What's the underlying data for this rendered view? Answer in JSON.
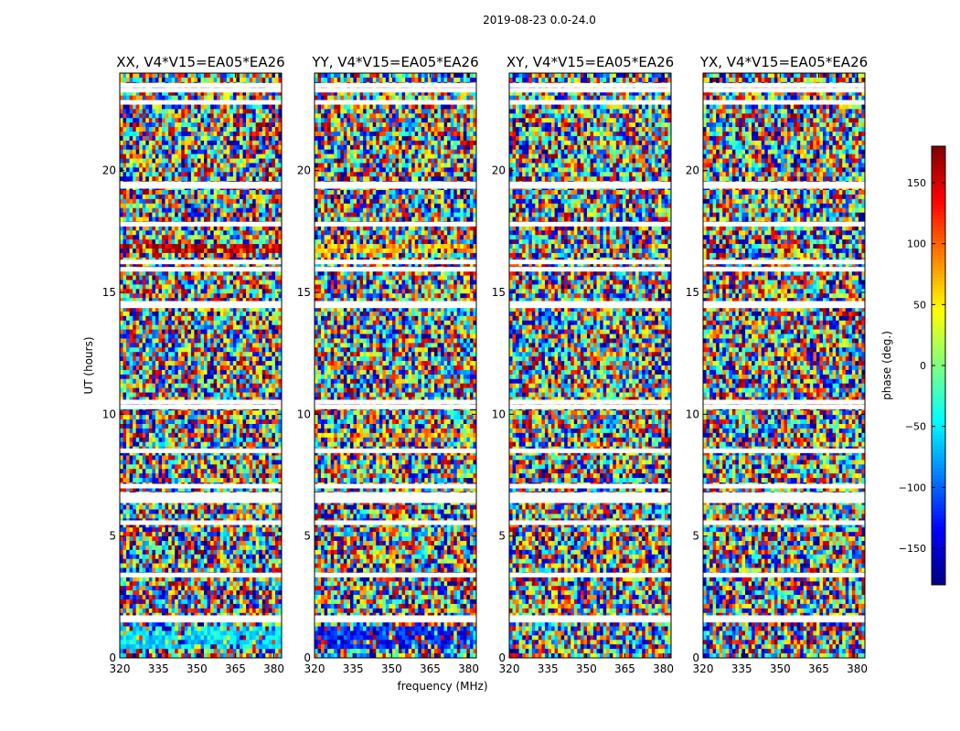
{
  "chart_data": {
    "type": "heatmap",
    "suptitle": "2019-08-23 0.0-24.0",
    "xlabel": "frequency (MHz)",
    "ylabel": "UT (hours)",
    "xlim": [
      320,
      383
    ],
    "ylim": [
      0,
      24
    ],
    "xticks": [
      320,
      335,
      350,
      365,
      380
    ],
    "yticks": [
      0,
      5,
      10,
      15,
      20
    ],
    "panels": [
      {
        "title": "XX, V4*V15=EA05*EA26",
        "pol": "XX"
      },
      {
        "title": "YY, V4*V15=EA05*EA26",
        "pol": "YY"
      },
      {
        "title": "XY, V4*V15=EA05*EA26",
        "pol": "XY"
      },
      {
        "title": "YX, V4*V15=EA05*EA26",
        "pol": "YX"
      }
    ],
    "colorbar": {
      "label": "phase (deg.)",
      "range": [
        -180,
        180
      ],
      "ticks": [
        150,
        100,
        50,
        0,
        -50,
        -100,
        -150
      ],
      "colormap": "jet"
    },
    "flagged_ut_hours": [
      1.55,
      1.65,
      3.4,
      5.55,
      6.45,
      6.55,
      6.7,
      7.05,
      8.5,
      10.3,
      10.5,
      14.45,
      14.55,
      15.95,
      16.25,
      17.8,
      19.35,
      19.45,
      22.8,
      23.3,
      23.5
    ]
  }
}
